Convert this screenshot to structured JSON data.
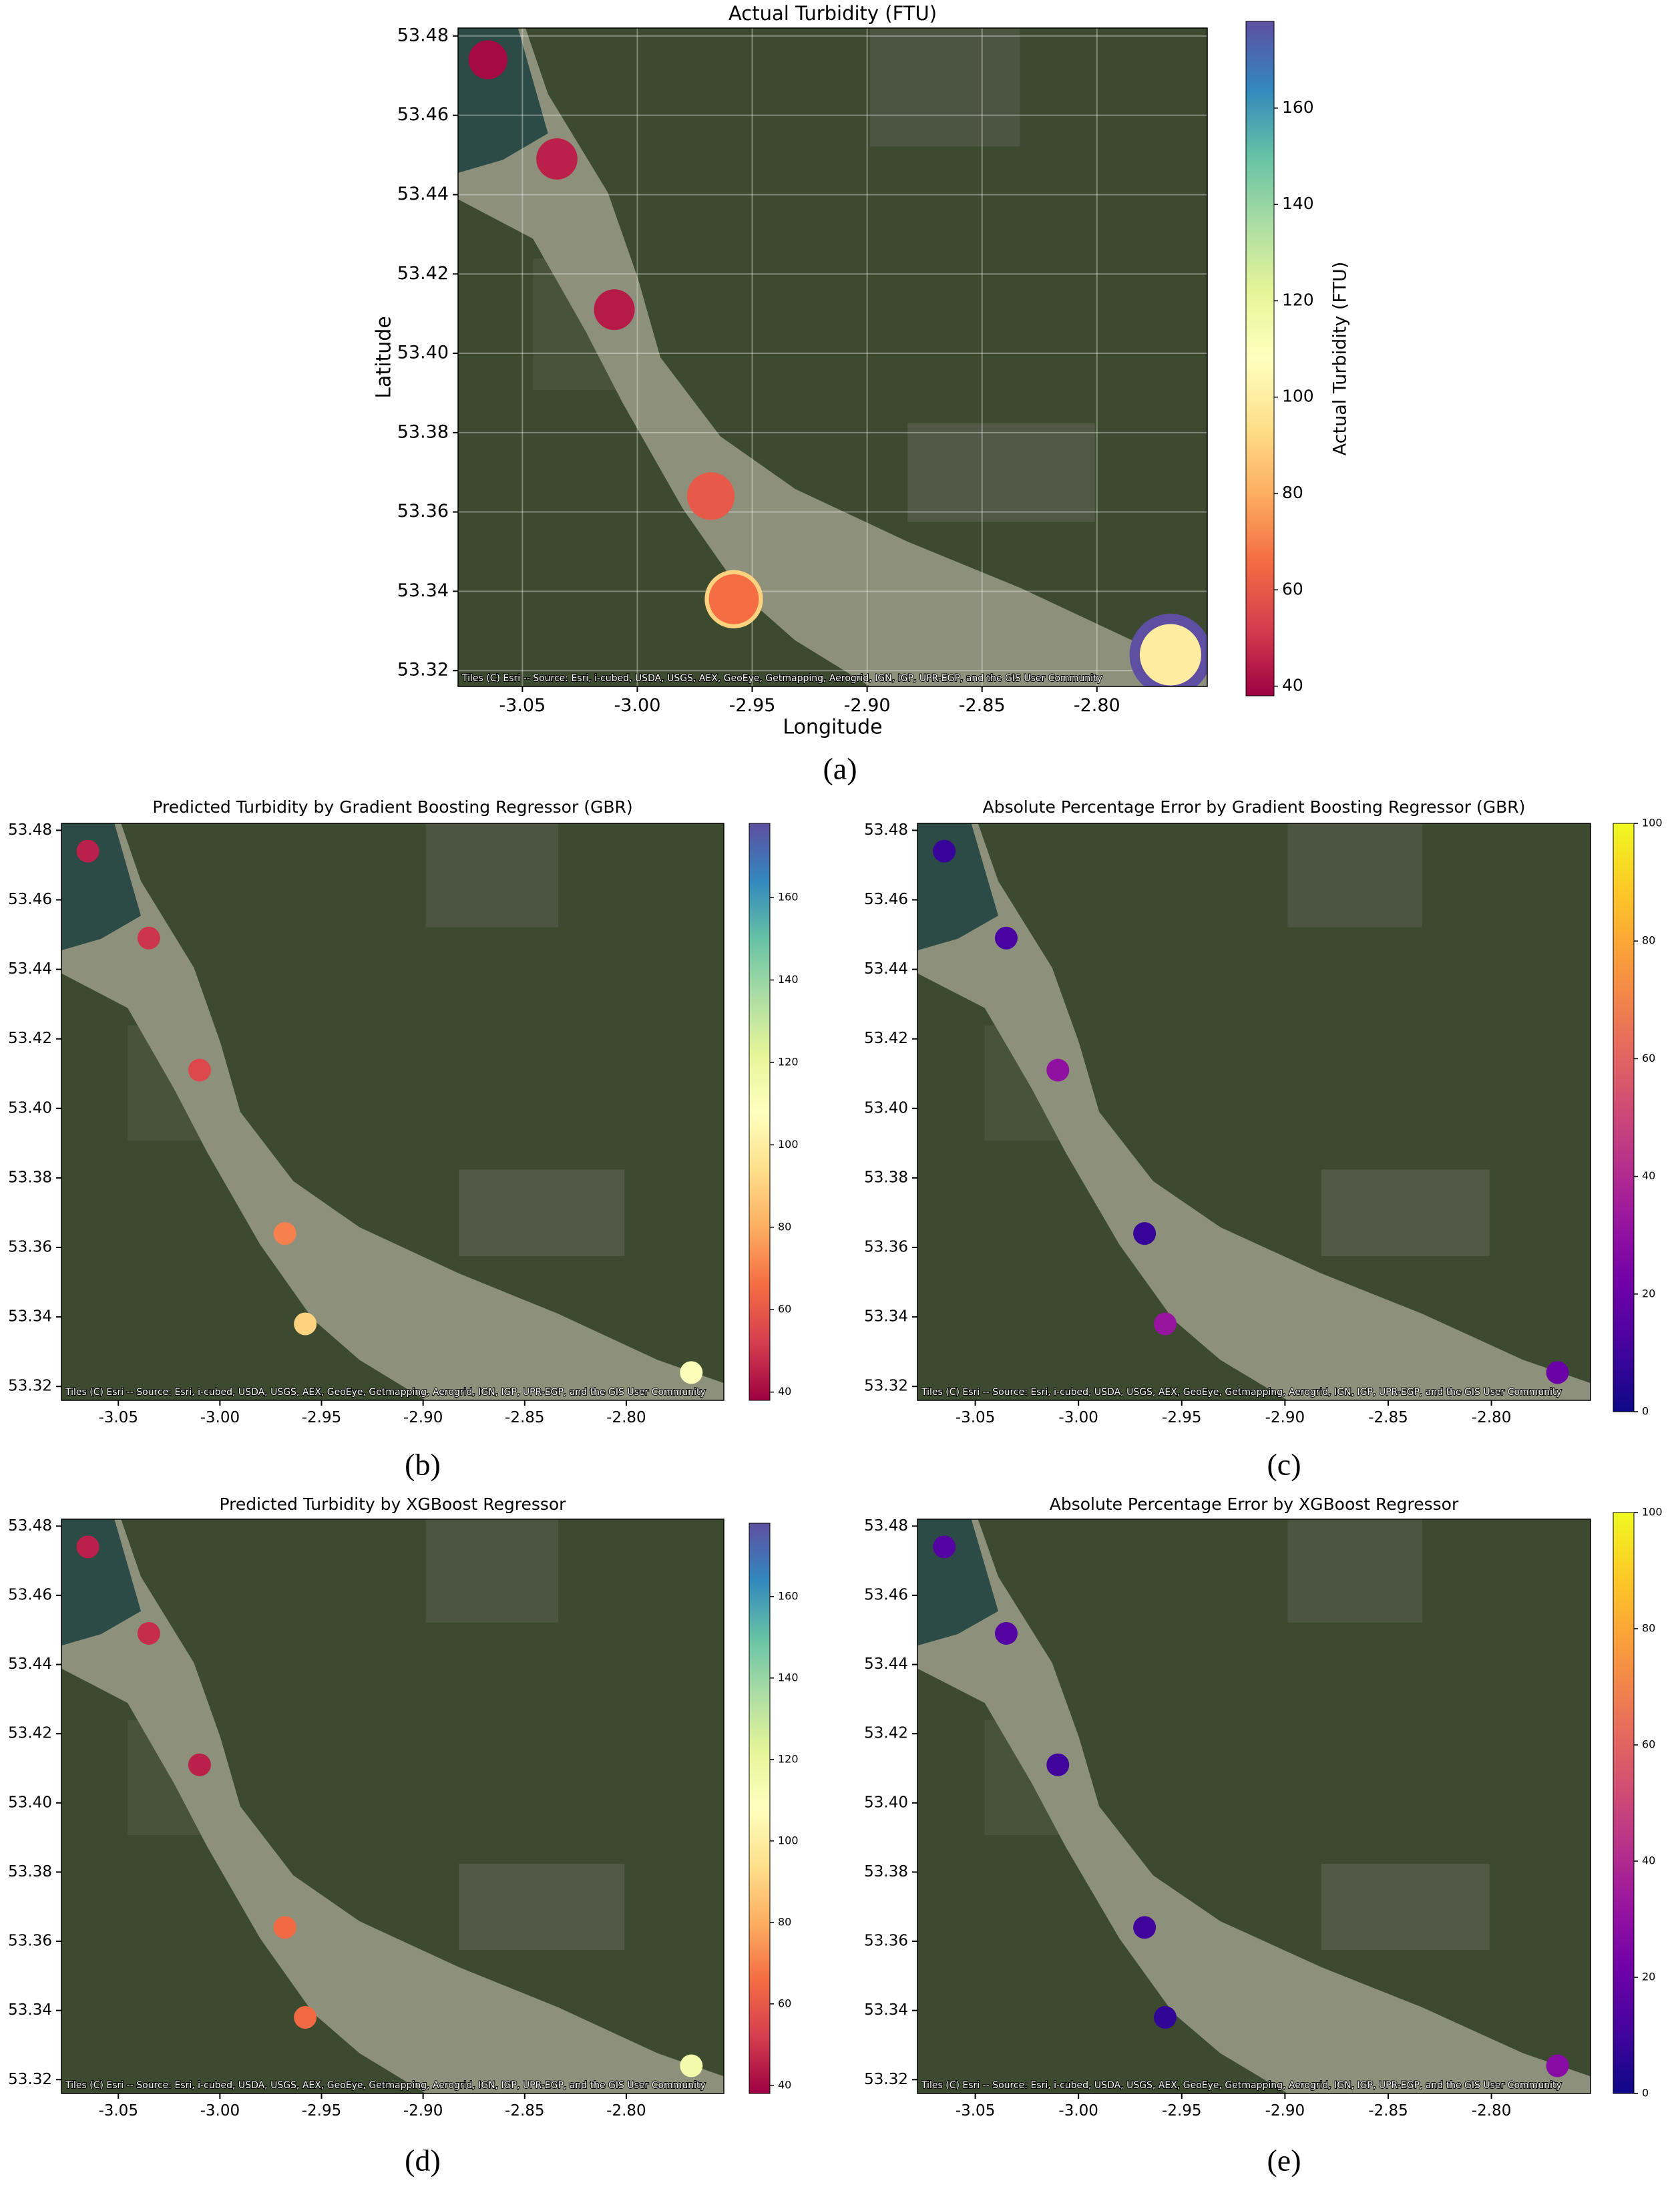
{
  "chart_data": [
    {
      "type": "scatter",
      "title": "Actual Turbidity (FTU)",
      "xlabel": "Longitude",
      "ylabel": "Latitude",
      "colorbar_label": "Actual Turbidity (FTU)",
      "panel_label": "(a)",
      "attribution": "Tiles (C) Esri -- Source: Esri, i-cubed, USDA, USGS, AEX, GeoEye, Getmapping, Aerogrid, IGN, IGP, UPR-EGP, and the GIS User Community",
      "x": [
        -2.768,
        -2.958,
        -3.065,
        -3.035,
        -3.01,
        -2.968,
        -2.958,
        -2.768
      ],
      "y": [
        53.324,
        53.338,
        53.474,
        53.449,
        53.411,
        53.364,
        53.338,
        53.324
      ],
      "values": [
        178,
        90,
        40,
        45,
        44,
        60,
        66,
        100
      ],
      "xlim": [
        -3.078,
        -2.752
      ],
      "ylim": [
        53.316,
        53.482
      ],
      "xticks": [
        -3.05,
        {
          "value": -3.0,
          "label": "-3.00"
        },
        -2.95,
        {
          "value": -2.9,
          "label": "-2.90"
        },
        -2.85,
        {
          "value": -2.8,
          "label": "-2.80"
        }
      ],
      "yticks": [
        53.32,
        53.34,
        53.36,
        53.38,
        {
          "value": 53.4,
          "label": "53.40"
        },
        53.42,
        53.44,
        53.46,
        53.48
      ],
      "clim": [
        38,
        178
      ],
      "cticks": [
        40,
        60,
        80,
        100,
        120,
        140,
        160
      ],
      "colormap": "Spectral",
      "size_by_value": true,
      "grid": true
    },
    {
      "type": "scatter",
      "title": "Predicted Turbidity by Gradient Boosting Regressor (GBR)",
      "panel_label": "(b)",
      "attribution": "Tiles (C) Esri -- Source: Esri, i-cubed, USDA, USGS, AEX, GeoEye, Getmapping, Aerogrid, IGN, IGP, UPR-EGP, and the GIS User Community",
      "x": [
        -3.065,
        -3.035,
        -3.01,
        -2.968,
        -2.958,
        -2.768
      ],
      "y": [
        53.474,
        53.449,
        53.411,
        53.364,
        53.338,
        53.324
      ],
      "values": [
        45,
        50,
        55,
        70,
        90,
        110
      ],
      "xlim": [
        -3.078,
        -2.752
      ],
      "ylim": [
        53.316,
        53.482
      ],
      "xticks": [
        -3.05,
        {
          "value": -3.0,
          "label": "-3.00"
        },
        -2.95,
        {
          "value": -2.9,
          "label": "-2.90"
        },
        -2.85,
        {
          "value": -2.8,
          "label": "-2.80"
        }
      ],
      "yticks": [
        53.32,
        53.34,
        53.36,
        53.38,
        {
          "value": 53.4,
          "label": "53.40"
        },
        53.42,
        53.44,
        53.46,
        53.48
      ],
      "clim": [
        38,
        178
      ],
      "cticks": [
        40,
        60,
        80,
        100,
        120,
        140,
        160
      ],
      "colormap": "Spectral",
      "size_by_value": false,
      "grid": false
    },
    {
      "type": "scatter",
      "title": "Absolute Percentage Error by Gradient Boosting Regressor (GBR)",
      "panel_label": "(c)",
      "attribution": "Tiles (C) Esri -- Source: Esri, i-cubed, USDA, USGS, AEX, GeoEye, Getmapping, Aerogrid, IGN, IGP, UPR-EGP, and the GIS User Community",
      "x": [
        -3.065,
        -3.035,
        -3.01,
        -2.968,
        -2.958,
        -2.768
      ],
      "y": [
        53.474,
        53.449,
        53.411,
        53.364,
        53.338,
        53.324
      ],
      "values": [
        8,
        12,
        30,
        8,
        32,
        20
      ],
      "xlim": [
        -3.078,
        -2.752
      ],
      "ylim": [
        53.316,
        53.482
      ],
      "xticks": [
        -3.05,
        {
          "value": -3.0,
          "label": "-3.00"
        },
        -2.95,
        {
          "value": -2.9,
          "label": "-2.90"
        },
        -2.85,
        {
          "value": -2.8,
          "label": "-2.80"
        }
      ],
      "yticks": [
        53.32,
        53.34,
        53.36,
        53.38,
        {
          "value": 53.4,
          "label": "53.40"
        },
        53.42,
        53.44,
        53.46,
        53.48
      ],
      "clim": [
        0,
        100
      ],
      "cticks": [
        0,
        20,
        40,
        60,
        80,
        100
      ],
      "colormap": "plasma",
      "size_by_value": false,
      "grid": false
    },
    {
      "type": "scatter",
      "title": "Predicted Turbidity by XGBoost Regressor",
      "panel_label": "(d)",
      "attribution": "Tiles (C) Esri -- Source: Esri, i-cubed, USDA, USGS, AEX, GeoEye, Getmapping, Aerogrid, IGN, IGP, UPR-EGP, and the GIS User Community",
      "x": [
        -3.065,
        -3.035,
        -3.01,
        -2.968,
        -2.958,
        -2.768
      ],
      "y": [
        53.474,
        53.449,
        53.411,
        53.364,
        53.338,
        53.324
      ],
      "values": [
        45,
        48,
        45,
        65,
        65,
        115
      ],
      "xlim": [
        -3.078,
        -2.752
      ],
      "ylim": [
        53.316,
        53.482
      ],
      "xticks": [
        -3.05,
        {
          "value": -3.0,
          "label": "-3.00"
        },
        -2.95,
        {
          "value": -2.9,
          "label": "-2.90"
        },
        -2.85,
        {
          "value": -2.8,
          "label": "-2.80"
        }
      ],
      "yticks": [
        53.32,
        53.34,
        53.36,
        53.38,
        {
          "value": 53.4,
          "label": "53.40"
        },
        53.42,
        53.44,
        53.46,
        53.48
      ],
      "clim": [
        38,
        178
      ],
      "cticks": [
        40,
        60,
        80,
        100,
        120,
        140,
        160
      ],
      "colormap": "Spectral",
      "size_by_value": false,
      "grid": false
    },
    {
      "type": "scatter",
      "title": "Absolute Percentage Error by XGBoost Regressor",
      "panel_label": "(e)",
      "attribution": "Tiles (C) Esri -- Source: Esri, i-cubed, USDA, USGS, AEX, GeoEye, Getmapping, Aerogrid, IGN, IGP, UPR-EGP, and the GIS User Community",
      "x": [
        -3.065,
        -3.035,
        -3.01,
        -2.968,
        -2.958,
        -2.768
      ],
      "y": [
        53.474,
        53.449,
        53.411,
        53.364,
        53.338,
        53.324
      ],
      "values": [
        15,
        15,
        10,
        10,
        7,
        28
      ],
      "xlim": [
        -3.078,
        -2.752
      ],
      "ylim": [
        53.316,
        53.482
      ],
      "xticks": [
        -3.05,
        {
          "value": -3.0,
          "label": "-3.00"
        },
        -2.95,
        {
          "value": -2.9,
          "label": "-2.90"
        },
        -2.85,
        {
          "value": -2.8,
          "label": "-2.80"
        }
      ],
      "yticks": [
        53.32,
        53.34,
        53.36,
        53.38,
        {
          "value": 53.4,
          "label": "53.40"
        },
        53.42,
        53.44,
        53.46,
        53.48
      ],
      "clim": [
        0,
        100
      ],
      "cticks": [
        0,
        20,
        40,
        60,
        80,
        100
      ],
      "colormap": "plasma",
      "size_by_value": false,
      "grid": false
    }
  ]
}
